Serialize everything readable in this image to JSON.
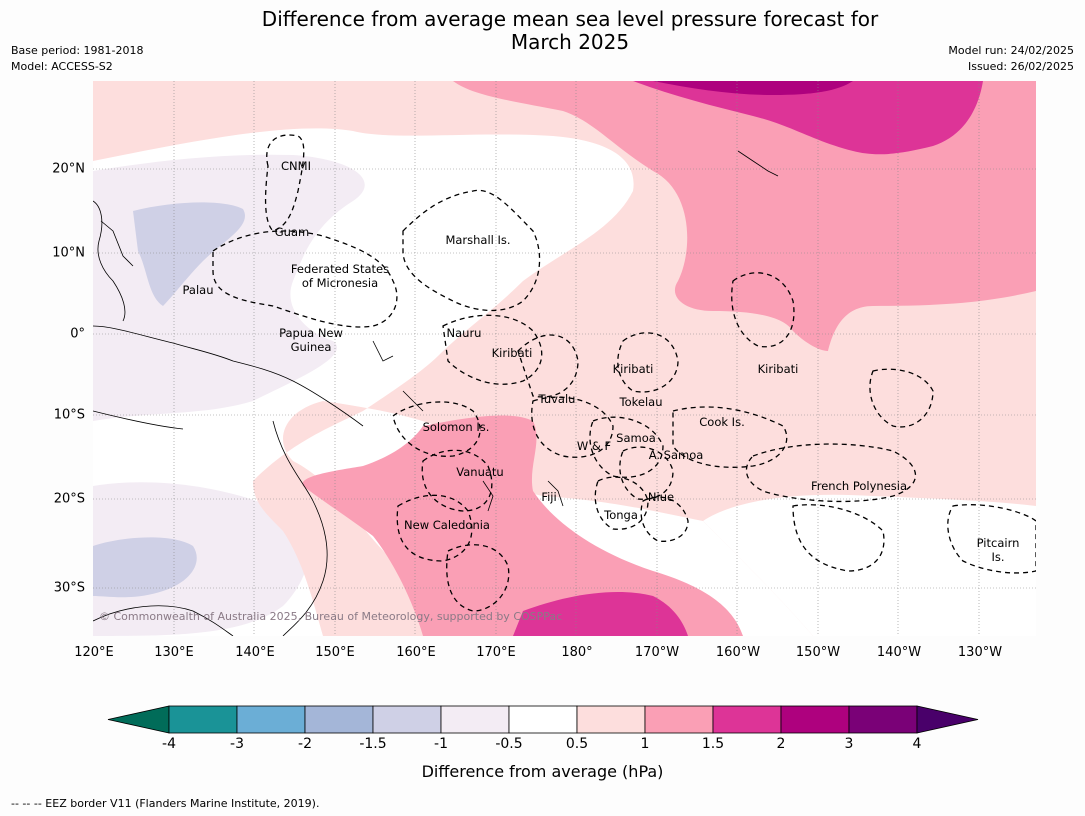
{
  "header": {
    "title_line1": "Difference from average mean sea level pressure forecast for",
    "title_line2": "March 2025",
    "base_period": "Base period: 1981-2018",
    "model": "Model: ACCESS-S2",
    "model_run": "Model run: 24/02/2025",
    "issued": "Issued: 26/02/2025"
  },
  "map": {
    "copyright": "© Commonwealth of Australia 2025, Bureau of Meteorology, supported by COSPPac",
    "lon_ticks": [
      "120°E",
      "130°E",
      "140°E",
      "150°E",
      "160°E",
      "170°E",
      "180°",
      "170°W",
      "160°W",
      "150°W",
      "140°W",
      "130°W"
    ],
    "lat_ticks": [
      "20°N",
      "10°N",
      "0°",
      "10°S",
      "20°S",
      "30°S"
    ],
    "labels": {
      "cnmi": "CNMI",
      "guam": "Guam",
      "marshall": "Marshall Is.",
      "fsm_1": "Federated States",
      "fsm_2": "of Micronesia",
      "palau": "Palau",
      "png_1": "Papua New",
      "png_2": "Guinea",
      "nauru": "Nauru",
      "kiribati_w": "Kiribati",
      "kiribati_c": "Kiribati",
      "kiribati_e": "Kiribati",
      "tuvalu": "Tuvalu",
      "tokelau": "Tokelau",
      "cook": "Cook Is.",
      "solomon": "Solomon Is.",
      "samoa": "Samoa",
      "wf": "W & F",
      "asamoa": "A. Samoa",
      "vanuatu": "Vanuatu",
      "fiji": "Fiji",
      "niue": "Niue",
      "tonga": "Tonga",
      "newcal": "New Caledonia",
      "frpoly": "French Polynesia",
      "pitcairn_1": "Pitcairn",
      "pitcairn_2": "Is."
    }
  },
  "colorbar": {
    "title": "Difference from average (hPa)",
    "labels": [
      "-4",
      "-3",
      "-2",
      "-1.5",
      "-1",
      "-0.5",
      "0.5",
      "1",
      "1.5",
      "2",
      "3",
      "4"
    ],
    "colors": [
      "#1a9397",
      "#6baed6",
      "#a4b6d8",
      "#cfd0e6",
      "#f3ecf4",
      "#ffffff",
      "#fddedd",
      "#fa9fb5",
      "#dd3497",
      "#ae017e",
      "#7a0177"
    ],
    "low_extend": "#016c59",
    "high_extend": "#49006a"
  },
  "footnote": "--  --  -- EEZ border V11 (Flanders Marine Institute, 2019)."
}
